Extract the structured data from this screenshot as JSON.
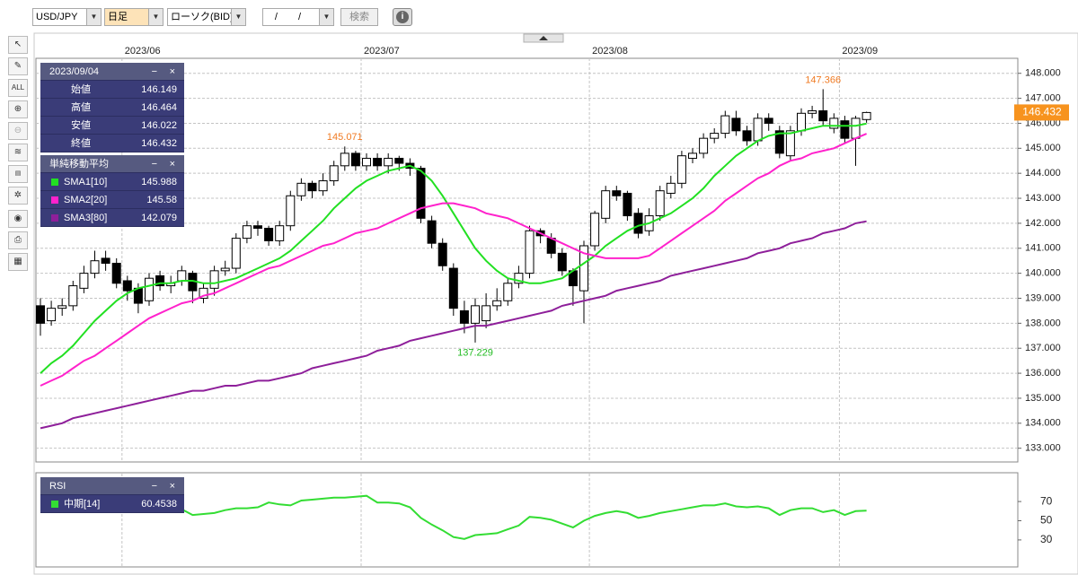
{
  "toolbar": {
    "symbol": "USD/JPY",
    "period": "日足",
    "chart_kind": "ローソク(BID)",
    "date": "/ /",
    "search": "検索"
  },
  "chart_data": [
    {
      "type": "candlestick",
      "categories": [
        null,
        null,
        null,
        null,
        null,
        null,
        null,
        null,
        null,
        null,
        null,
        null,
        null,
        null,
        null,
        null,
        null,
        null,
        null,
        null,
        null,
        null,
        null,
        null,
        null,
        null,
        null,
        null,
        null,
        null,
        null,
        null,
        null,
        null,
        null,
        null,
        null,
        null,
        null,
        null,
        null,
        null,
        null,
        null,
        null,
        null,
        null,
        null,
        null,
        null,
        null,
        null,
        null,
        null,
        null,
        null,
        null,
        null,
        null,
        null,
        null,
        null,
        null,
        null,
        null,
        null,
        null,
        null,
        null,
        null,
        null,
        null,
        null,
        null,
        null,
        null,
        null
      ],
      "xticks": [
        {
          "value": 8,
          "label": "2023/06"
        },
        {
          "value": 30,
          "label": "2023/07"
        },
        {
          "value": 51,
          "label": "2023/08"
        },
        {
          "value": 74,
          "label": "2023/09"
        }
      ],
      "open": [
        138.7,
        138.1,
        138.6,
        138.7,
        139.4,
        140.0,
        140.6,
        140.4,
        139.7,
        139.4,
        138.9,
        139.9,
        139.5,
        139.7,
        140.0,
        139.0,
        139.4,
        140.1,
        140.2,
        141.4,
        141.9,
        141.8,
        141.3,
        141.9,
        143.1,
        143.6,
        143.3,
        143.7,
        144.3,
        144.8,
        144.3,
        144.6,
        144.3,
        144.6,
        144.4,
        144.2,
        142.1,
        141.2,
        140.2,
        138.5,
        138.0,
        138.1,
        138.7,
        138.9,
        139.6,
        140.0,
        141.7,
        141.4,
        140.8,
        140.1,
        139.3,
        141.1,
        142.2,
        143.3,
        143.2,
        142.4,
        141.7,
        142.3,
        143.2,
        143.6,
        144.6,
        144.8,
        145.4,
        145.6,
        146.2,
        145.7,
        145.3,
        146.2,
        145.7,
        144.7,
        145.7,
        146.4,
        146.5,
        145.8,
        146.1,
        145.4,
        146.149
      ],
      "high": [
        139.0,
        138.9,
        139.0,
        139.7,
        140.3,
        140.9,
        140.9,
        140.6,
        139.9,
        139.6,
        140.0,
        140.1,
        139.9,
        140.3,
        140.1,
        139.6,
        140.3,
        140.5,
        141.6,
        142.1,
        142.1,
        141.9,
        142.1,
        143.3,
        143.8,
        143.7,
        144.0,
        144.5,
        145.071,
        144.9,
        144.8,
        144.8,
        144.8,
        144.7,
        144.6,
        144.3,
        142.3,
        141.4,
        140.4,
        138.9,
        139.0,
        139.2,
        139.4,
        139.8,
        140.3,
        141.9,
        141.8,
        141.6,
        141.0,
        140.2,
        141.3,
        142.5,
        143.5,
        143.5,
        143.3,
        142.6,
        142.6,
        143.5,
        143.9,
        144.9,
        145.0,
        145.6,
        145.8,
        146.5,
        146.5,
        145.9,
        146.4,
        146.4,
        145.9,
        145.9,
        146.6,
        146.7,
        147.366,
        146.4,
        146.3,
        146.3,
        146.464
      ],
      "low": [
        137.5,
        137.9,
        138.3,
        138.5,
        139.2,
        139.8,
        140.1,
        139.4,
        138.9,
        138.4,
        138.7,
        139.3,
        139.2,
        139.5,
        138.8,
        138.8,
        139.1,
        139.9,
        140.0,
        141.2,
        141.5,
        141.1,
        141.1,
        141.7,
        142.9,
        143.0,
        143.1,
        143.5,
        144.1,
        144.1,
        144.1,
        144.1,
        144.0,
        144.1,
        143.9,
        142.0,
        141.0,
        140.1,
        138.3,
        137.6,
        137.229,
        137.8,
        138.5,
        138.7,
        139.4,
        139.8,
        141.2,
        140.6,
        139.9,
        138.7,
        138.0,
        140.9,
        142.0,
        142.9,
        142.1,
        141.4,
        141.5,
        142.1,
        143.0,
        143.4,
        144.4,
        144.6,
        145.2,
        145.4,
        145.5,
        145.1,
        145.1,
        145.7,
        144.6,
        144.5,
        145.5,
        146.2,
        145.9,
        145.6,
        145.2,
        144.3,
        146.022
      ],
      "close": [
        138.0,
        138.6,
        138.7,
        139.5,
        140.0,
        140.5,
        140.4,
        139.6,
        139.3,
        138.8,
        139.8,
        139.5,
        139.6,
        140.1,
        139.3,
        139.4,
        140.1,
        140.2,
        141.4,
        141.9,
        141.8,
        141.3,
        141.9,
        143.1,
        143.6,
        143.3,
        143.7,
        144.3,
        144.8,
        144.3,
        144.6,
        144.3,
        144.6,
        144.4,
        144.2,
        142.2,
        141.2,
        140.3,
        138.6,
        138.0,
        138.7,
        138.7,
        138.9,
        139.6,
        140.0,
        141.7,
        141.5,
        140.8,
        140.1,
        139.5,
        141.1,
        142.4,
        143.3,
        143.1,
        142.3,
        141.6,
        142.3,
        143.3,
        143.6,
        144.7,
        144.8,
        145.4,
        145.6,
        146.3,
        145.7,
        145.3,
        146.2,
        146.0,
        144.8,
        145.7,
        146.4,
        146.5,
        146.1,
        146.2,
        145.4,
        146.2,
        146.432
      ],
      "up_color": "#ffffff",
      "down_color": "#000000",
      "last_price_color": "#f7931e",
      "series": [
        {
          "name": "SMA1[10]",
          "color": "#22e022",
          "values": [
            136.0,
            136.4,
            136.7,
            137.1,
            137.6,
            138.1,
            138.5,
            138.9,
            139.2,
            139.4,
            139.5,
            139.6,
            139.6,
            139.7,
            139.7,
            139.6,
            139.6,
            139.7,
            139.8,
            140.0,
            140.2,
            140.4,
            140.6,
            140.9,
            141.3,
            141.7,
            142.1,
            142.6,
            143.0,
            143.4,
            143.7,
            143.9,
            144.1,
            144.2,
            144.3,
            144.1,
            143.7,
            143.1,
            142.4,
            141.7,
            141.0,
            140.5,
            140.1,
            139.8,
            139.7,
            139.6,
            139.6,
            139.7,
            139.8,
            140.1,
            140.4,
            140.7,
            141.1,
            141.4,
            141.7,
            141.9,
            142.0,
            142.2,
            142.4,
            142.7,
            143.0,
            143.4,
            143.9,
            144.3,
            144.7,
            145.0,
            145.3,
            145.5,
            145.6,
            145.6,
            145.7,
            145.8,
            145.9,
            145.9,
            145.9,
            145.9,
            145.988
          ]
        },
        {
          "name": "SMA2[20]",
          "color": "#ff22cc",
          "values": [
            135.5,
            135.7,
            135.9,
            136.2,
            136.5,
            136.7,
            137.0,
            137.3,
            137.6,
            137.9,
            138.2,
            138.4,
            138.6,
            138.8,
            138.9,
            139.1,
            139.2,
            139.4,
            139.6,
            139.8,
            140.0,
            140.2,
            140.3,
            140.5,
            140.7,
            140.9,
            141.1,
            141.2,
            141.4,
            141.6,
            141.7,
            141.8,
            142.0,
            142.2,
            142.4,
            142.6,
            142.7,
            142.8,
            142.8,
            142.7,
            142.6,
            142.4,
            142.3,
            142.2,
            142.0,
            141.8,
            141.6,
            141.4,
            141.2,
            141.0,
            140.8,
            140.7,
            140.6,
            140.6,
            140.6,
            140.6,
            140.7,
            141.0,
            141.3,
            141.6,
            141.9,
            142.2,
            142.5,
            142.9,
            143.2,
            143.5,
            143.8,
            144.0,
            144.3,
            144.5,
            144.6,
            144.8,
            144.9,
            145.0,
            145.2,
            145.4,
            145.58
          ]
        },
        {
          "name": "SMA3[80]",
          "color": "#8e1f9a",
          "values": [
            133.8,
            133.9,
            134.0,
            134.2,
            134.3,
            134.4,
            134.5,
            134.6,
            134.7,
            134.8,
            134.9,
            135.0,
            135.1,
            135.2,
            135.3,
            135.3,
            135.4,
            135.5,
            135.5,
            135.6,
            135.7,
            135.7,
            135.8,
            135.9,
            136.0,
            136.2,
            136.3,
            136.4,
            136.5,
            136.6,
            136.7,
            136.9,
            137.0,
            137.1,
            137.3,
            137.4,
            137.5,
            137.6,
            137.7,
            137.8,
            137.9,
            137.9,
            138.0,
            138.1,
            138.2,
            138.3,
            138.4,
            138.5,
            138.7,
            138.8,
            138.9,
            139.0,
            139.1,
            139.3,
            139.4,
            139.5,
            139.6,
            139.7,
            139.9,
            140.0,
            140.1,
            140.2,
            140.3,
            140.4,
            140.5,
            140.6,
            140.8,
            140.9,
            141.0,
            141.2,
            141.3,
            141.4,
            141.6,
            141.7,
            141.8,
            142.0,
            142.079
          ]
        }
      ],
      "legend_title": "単純移動平均",
      "info_panel": {
        "date": "2023/09/04",
        "labels": [
          "始値",
          "高値",
          "安値",
          "終値"
        ]
      },
      "annotations": [
        {
          "label": "147.366",
          "value": 147.366,
          "color": "#f07a22"
        },
        {
          "label": "145.071",
          "value": 145.071,
          "color": "#f07a22"
        },
        {
          "label": "137.229",
          "value": 137.229,
          "color": "#22bb22"
        }
      ],
      "ylim": [
        132.45,
        148.6
      ],
      "yticks": [
        {
          "value": 133,
          "label": "133.000"
        },
        {
          "value": 134,
          "label": "134.000"
        },
        {
          "value": 135,
          "label": "135.000"
        },
        {
          "value": 136,
          "label": "136.000"
        },
        {
          "value": 137,
          "label": "137.000"
        },
        {
          "value": 138,
          "label": "138.000"
        },
        {
          "value": 139,
          "label": "139.000"
        },
        {
          "value": 140,
          "label": "140.000"
        },
        {
          "value": 141,
          "label": "141.000"
        },
        {
          "value": 142,
          "label": "142.000"
        },
        {
          "value": 143,
          "label": "143.000"
        },
        {
          "value": 144,
          "label": "144.000"
        },
        {
          "value": 145,
          "label": "145.000"
        },
        {
          "value": 146,
          "label": "146.000"
        },
        {
          "value": 147,
          "label": "147.000"
        },
        {
          "value": 148,
          "label": "148.000"
        }
      ],
      "grid": true
    },
    {
      "type": "line",
      "title": "RSI",
      "series": [
        {
          "name": "中期[14]",
          "color": "#33dd33",
          "values": [
            65,
            65,
            65,
            66,
            67,
            68,
            69,
            69,
            68,
            67,
            67,
            67,
            66,
            62,
            56,
            57,
            58,
            61,
            63,
            63,
            64,
            69,
            67,
            66,
            71,
            72,
            73,
            74,
            74,
            75,
            76,
            69,
            69,
            68,
            64,
            53,
            46,
            40,
            33,
            31,
            35,
            36,
            37,
            41,
            45,
            54,
            53,
            51,
            47,
            43,
            50,
            55,
            58,
            60,
            58,
            53,
            55,
            58,
            60,
            62,
            64,
            66,
            66,
            68,
            65,
            64,
            65,
            63,
            56,
            61,
            63,
            63,
            59,
            61,
            56,
            60,
            60.4538
          ]
        }
      ],
      "ylim": [
        0,
        100
      ],
      "yticks": [
        30,
        50,
        70
      ],
      "grid": true
    }
  ]
}
